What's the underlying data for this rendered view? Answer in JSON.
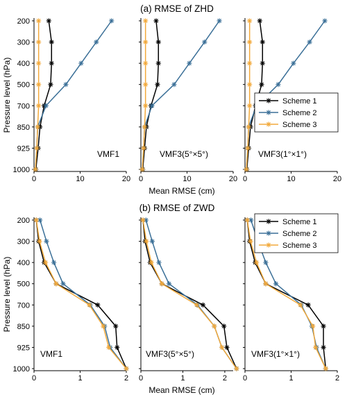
{
  "panels": [
    {
      "title": "(a) RMSE of ZHD",
      "xlabel": "Mean RMSE (cm)",
      "ylabel": "Pressure level (hPa)"
    },
    {
      "title": "(b) RMSE of ZWD",
      "xlabel": "Mean RMSE (cm)",
      "ylabel": "Pressure level (hPa)"
    }
  ],
  "legend": [
    "Scheme 1",
    "Scheme 2",
    "Scheme 3"
  ],
  "colors": {
    "Scheme 1": "#000000",
    "Scheme 2": "#3a6f97",
    "Scheme 3": "#f2a93b"
  },
  "chart_data": [
    {
      "type": "line",
      "title": "(a) RMSE of ZHD",
      "subplot": "VMF1",
      "categories": [
        "200",
        "300",
        "400",
        "500",
        "700",
        "850",
        "925",
        "1000"
      ],
      "xlim": [
        0,
        20
      ],
      "xticks": [
        0,
        10,
        20
      ],
      "series": [
        {
          "name": "Scheme 1",
          "values": [
            3.2,
            3.8,
            3.8,
            3.6,
            2.2,
            1.3,
            0.9,
            0.4
          ]
        },
        {
          "name": "Scheme 2",
          "values": [
            16.8,
            13.5,
            10.2,
            6.9,
            2.6,
            0.8,
            0.6,
            0.3
          ]
        },
        {
          "name": "Scheme 3",
          "values": [
            1.0,
            1.0,
            1.0,
            1.0,
            1.0,
            0.8,
            0.6,
            0.3
          ]
        }
      ]
    },
    {
      "type": "line",
      "title": "(a) RMSE of ZHD",
      "subplot": "VMF3(5°×5°)",
      "categories": [
        "200",
        "300",
        "400",
        "500",
        "700",
        "850",
        "925",
        "1000"
      ],
      "xlim": [
        0,
        20
      ],
      "xticks": [
        0,
        10,
        20
      ],
      "series": [
        {
          "name": "Scheme 1",
          "values": [
            3.3,
            3.8,
            3.8,
            3.6,
            2.2,
            1.2,
            0.8,
            0.4
          ]
        },
        {
          "name": "Scheme 2",
          "values": [
            17.0,
            13.8,
            10.5,
            7.2,
            2.4,
            0.8,
            0.6,
            0.3
          ]
        },
        {
          "name": "Scheme 3",
          "values": [
            1.0,
            1.0,
            1.0,
            1.0,
            1.0,
            0.8,
            0.6,
            0.3
          ]
        }
      ]
    },
    {
      "type": "line",
      "title": "(a) RMSE of ZHD",
      "subplot": "VMF3(1°×1°)",
      "categories": [
        "200",
        "300",
        "400",
        "500",
        "700",
        "850",
        "925",
        "1000"
      ],
      "xlim": [
        0,
        20
      ],
      "xticks": [
        0,
        10,
        20
      ],
      "series": [
        {
          "name": "Scheme 1",
          "values": [
            3.2,
            3.8,
            3.8,
            3.6,
            2.3,
            1.2,
            0.8,
            0.4
          ]
        },
        {
          "name": "Scheme 2",
          "values": [
            17.3,
            14.0,
            10.5,
            7.2,
            2.5,
            0.8,
            0.6,
            0.3
          ]
        },
        {
          "name": "Scheme 3",
          "values": [
            1.0,
            1.0,
            1.0,
            1.0,
            1.0,
            0.8,
            0.6,
            0.3
          ]
        }
      ]
    },
    {
      "type": "line",
      "title": "(b) RMSE of ZWD",
      "subplot": "VMF1",
      "categories": [
        "200",
        "300",
        "400",
        "500",
        "700",
        "850",
        "925",
        "1000"
      ],
      "xlim": [
        0,
        2
      ],
      "xticks": [
        0,
        1,
        2
      ],
      "series": [
        {
          "name": "Scheme 1",
          "values": [
            0.05,
            0.1,
            0.22,
            0.48,
            1.38,
            1.77,
            1.8,
            2.0
          ]
        },
        {
          "name": "Scheme 2",
          "values": [
            0.13,
            0.27,
            0.43,
            0.63,
            1.22,
            1.53,
            1.65,
            2.0
          ]
        },
        {
          "name": "Scheme 3",
          "values": [
            0.05,
            0.12,
            0.25,
            0.48,
            1.2,
            1.5,
            1.62,
            2.0
          ]
        }
      ]
    },
    {
      "type": "line",
      "title": "(b) RMSE of ZWD",
      "subplot": "VMF3(5°×5°)",
      "categories": [
        "200",
        "300",
        "400",
        "500",
        "700",
        "850",
        "925",
        "1000"
      ],
      "xlim": [
        0,
        2.2
      ],
      "xticks": [
        0,
        1,
        2
      ],
      "series": [
        {
          "name": "Scheme 1",
          "values": [
            0.05,
            0.1,
            0.22,
            0.5,
            1.48,
            1.98,
            2.05,
            2.28
          ]
        },
        {
          "name": "Scheme 2",
          "values": [
            0.12,
            0.27,
            0.43,
            0.67,
            1.35,
            1.75,
            1.93,
            2.28
          ]
        },
        {
          "name": "Scheme 3",
          "values": [
            0.05,
            0.13,
            0.25,
            0.5,
            1.33,
            1.75,
            1.93,
            2.28
          ]
        }
      ]
    },
    {
      "type": "line",
      "title": "(b) RMSE of ZWD",
      "subplot": "VMF3(1°×1°)",
      "categories": [
        "200",
        "300",
        "400",
        "500",
        "700",
        "850",
        "925",
        "1000"
      ],
      "xlim": [
        0,
        2
      ],
      "xticks": [
        0,
        1,
        2
      ],
      "series": [
        {
          "name": "Scheme 1",
          "values": [
            0.05,
            0.1,
            0.22,
            0.45,
            1.37,
            1.7,
            1.7,
            1.75
          ]
        },
        {
          "name": "Scheme 2",
          "values": [
            0.13,
            0.28,
            0.45,
            0.67,
            1.22,
            1.45,
            1.55,
            1.75
          ]
        },
        {
          "name": "Scheme 3",
          "values": [
            0.05,
            0.12,
            0.25,
            0.45,
            1.2,
            1.47,
            1.53,
            1.75
          ]
        }
      ]
    }
  ]
}
